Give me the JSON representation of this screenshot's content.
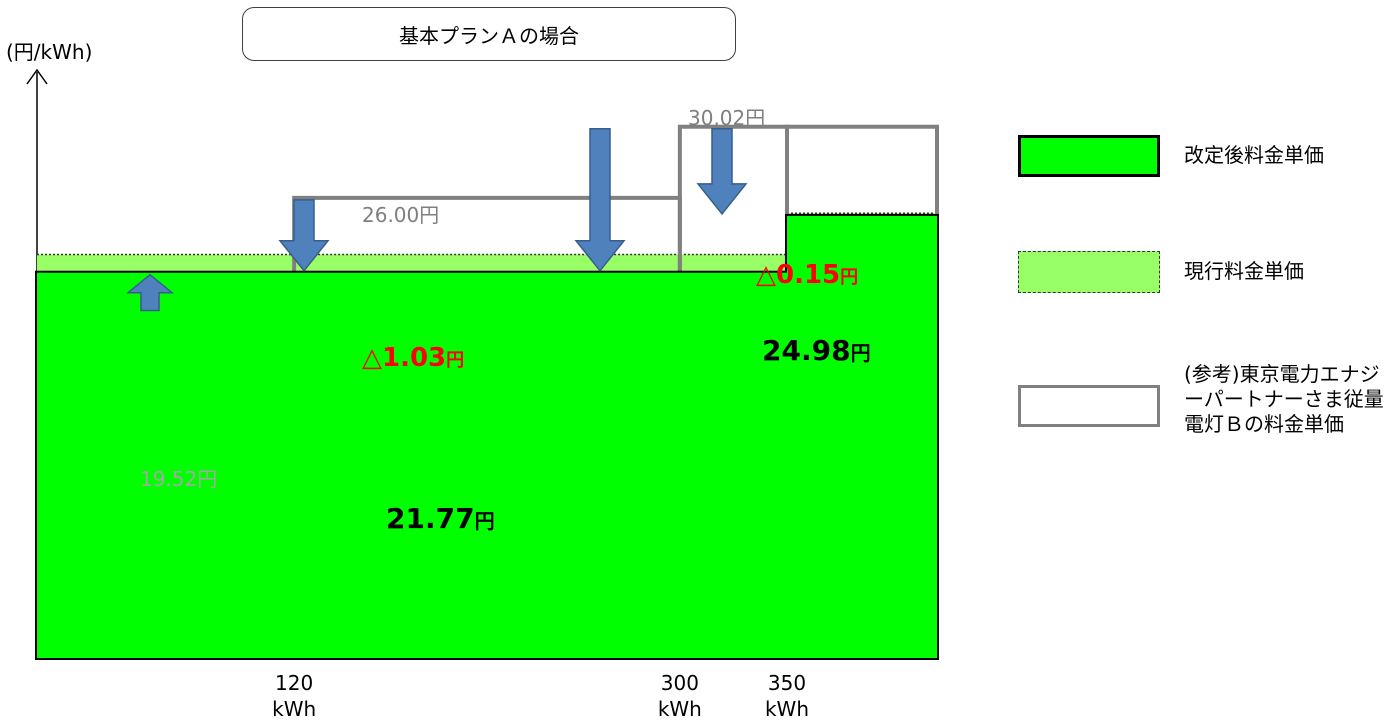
{
  "title": "基本プランＡの場合",
  "y_unit": "(円/kWh)",
  "chart_data": {
    "type": "bar",
    "title": "基本プランＡの場合",
    "ylabel": "(円/kWh)",
    "x_unit": "kWh",
    "tiers": [
      {
        "from": 0,
        "to": 120,
        "new": 21.77,
        "current": 22.8,
        "reference": 19.52
      },
      {
        "from": 120,
        "to": 300,
        "new": 21.77,
        "current": 22.8,
        "reference": 26.0
      },
      {
        "from": 300,
        "to": 350,
        "new": 21.77,
        "current": 22.8,
        "reference": 30.02
      },
      {
        "from": 350,
        "to": 420,
        "new": 24.98,
        "current": 25.13,
        "reference": 30.02
      }
    ],
    "x_max": 420,
    "ylim": [
      0,
      30.4
    ],
    "tick_labels": [
      {
        "x": 120,
        "label": "120\nkWh"
      },
      {
        "x": 300,
        "label": "300\nkWh"
      },
      {
        "x": 350,
        "label": "350\nkWh"
      }
    ],
    "labels": {
      "ref_19": "19.52円",
      "ref_26": "26.00円",
      "ref_30": "30.02円",
      "new_21": "21.77",
      "new_24": "24.98",
      "yen": "円",
      "delta_1": "△1.03",
      "delta_2": "△0.15"
    },
    "legend": [
      {
        "key": "new",
        "label": "改定後料金単価"
      },
      {
        "key": "current",
        "label": "現行料金単価"
      },
      {
        "key": "reference",
        "label": "(参考)東京電力エナジーパートナーさま従量電灯Ｂの料金単価"
      }
    ],
    "colors": {
      "new": "#00ff00",
      "current": "#99ff66",
      "reference": "#808080",
      "arrow": "#4f81bd",
      "arrow_edge": "#385d8a",
      "delta": "#ff0000",
      "ref_label": "#7f7f7f",
      "ref_label_light": "#a6a6a6"
    }
  }
}
